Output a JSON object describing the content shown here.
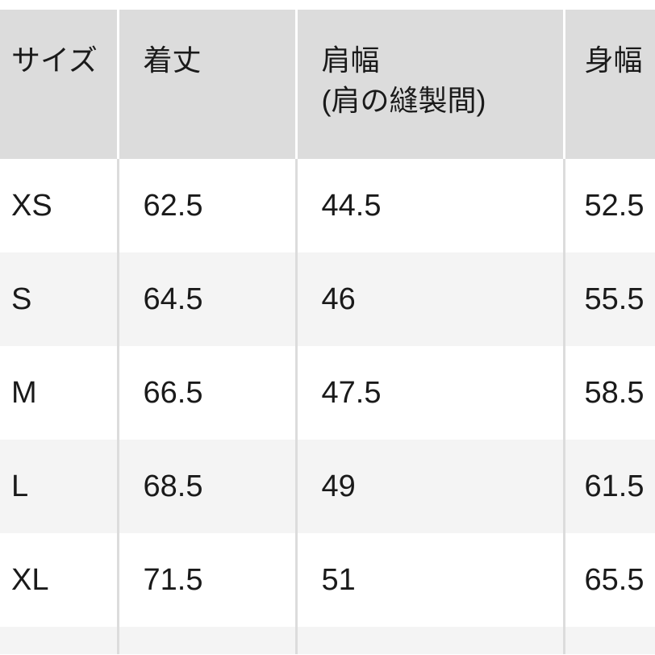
{
  "headers": [
    "サイズ",
    "着丈",
    "肩幅\n(肩の縫製間)",
    "身幅"
  ],
  "header_lines": {
    "shoulder_1": "肩幅",
    "shoulder_2": "(肩の縫製間)"
  },
  "rows": [
    {
      "size": "XS",
      "length": "62.5",
      "shoulder": "44.5",
      "chest": "52.5"
    },
    {
      "size": "S",
      "length": "64.5",
      "shoulder": "46",
      "chest": "55.5"
    },
    {
      "size": "M",
      "length": "66.5",
      "shoulder": "47.5",
      "chest": "58.5"
    },
    {
      "size": "L",
      "length": "68.5",
      "shoulder": "49",
      "chest": "61.5"
    },
    {
      "size": "XL",
      "length": "71.5",
      "shoulder": "51",
      "chest": "65.5"
    },
    {
      "size": "",
      "length": "",
      "shoulder": "",
      "chest": ""
    }
  ],
  "colors": {
    "header_bg": "#dcdcdc",
    "alt_row_bg": "#f4f4f4"
  }
}
